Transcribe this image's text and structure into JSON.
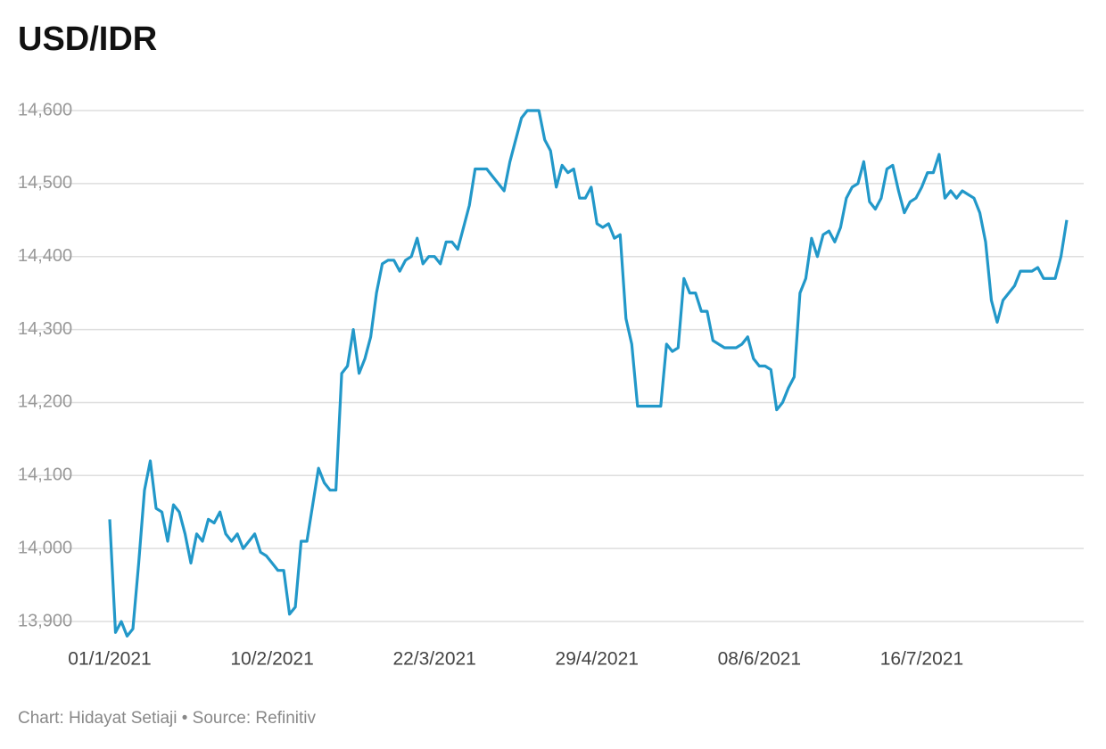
{
  "chart_data": {
    "type": "line",
    "title": "USD/IDR",
    "source": "Chart: Hidayat Setiaji • Source: Refinitiv",
    "categories": [
      "01/1/2021",
      null,
      null,
      null,
      null,
      null,
      null,
      null,
      null,
      null,
      null,
      null,
      null,
      null,
      null,
      null,
      null,
      null,
      null,
      null,
      null,
      null,
      null,
      null,
      null,
      null,
      null,
      null,
      "10/2/2021",
      null,
      null,
      null,
      null,
      null,
      null,
      null,
      null,
      null,
      null,
      null,
      null,
      null,
      null,
      null,
      null,
      null,
      null,
      null,
      null,
      null,
      null,
      null,
      null,
      null,
      null,
      null,
      "22/3/2021",
      null,
      null,
      null,
      null,
      null,
      null,
      null,
      null,
      null,
      null,
      null,
      null,
      null,
      null,
      null,
      null,
      null,
      null,
      null,
      null,
      null,
      null,
      null,
      null,
      null,
      null,
      null,
      "29/4/2021",
      null,
      null,
      null,
      null,
      null,
      null,
      null,
      null,
      null,
      null,
      null,
      null,
      null,
      null,
      null,
      null,
      null,
      null,
      null,
      null,
      null,
      null,
      null,
      null,
      null,
      null,
      null,
      "08/6/2021",
      null,
      null,
      null,
      null,
      null,
      null,
      null,
      null,
      null,
      null,
      null,
      null,
      null,
      null,
      null,
      null,
      null,
      null,
      null,
      null,
      null,
      null,
      null,
      null,
      null,
      null,
      null,
      "16/7/2021",
      null,
      null,
      null,
      null,
      null,
      null,
      null,
      null,
      null,
      null,
      null,
      null,
      null,
      null,
      null,
      null,
      null,
      null,
      null,
      null,
      null,
      null,
      null,
      null,
      null
    ],
    "series": [
      {
        "name": "USD/IDR",
        "color": "#2298c9",
        "values": [
          14040,
          13885,
          13900,
          13880,
          13890,
          13980,
          14080,
          14120,
          14055,
          14050,
          14010,
          14060,
          14050,
          14020,
          13980,
          14020,
          14010,
          14040,
          14035,
          14050,
          14020,
          14010,
          14020,
          14000,
          14010,
          14020,
          13995,
          13990,
          13980,
          13970,
          13970,
          13910,
          13920,
          14010,
          14010,
          14060,
          14110,
          14090,
          14080,
          14080,
          14240,
          14250,
          14300,
          14240,
          14260,
          14290,
          14350,
          14390,
          14395,
          14395,
          14380,
          14395,
          14400,
          14425,
          14390,
          14400,
          14400,
          14390,
          14420,
          14420,
          14410,
          14440,
          14470,
          14520,
          14520,
          14520,
          14510,
          14500,
          14490,
          14530,
          14560,
          14590,
          14600,
          14600,
          14600,
          14560,
          14545,
          14495,
          14525,
          14515,
          14520,
          14480,
          14480,
          14495,
          14445,
          14440,
          14445,
          14425,
          14430,
          14315,
          14280,
          14195,
          14195,
          14195,
          14195,
          14195,
          14280,
          14270,
          14275,
          14370,
          14350,
          14350,
          14325,
          14325,
          14285,
          14280,
          14275,
          14275,
          14275,
          14280,
          14290,
          14260,
          14250,
          14250,
          14245,
          14190,
          14200,
          14220,
          14235,
          14350,
          14370,
          14425,
          14400,
          14430,
          14435,
          14420,
          14440,
          14480,
          14495,
          14500,
          14530,
          14475,
          14465,
          14480,
          14520,
          14525,
          14490,
          14460,
          14475,
          14480,
          14495,
          14515,
          14515,
          14540,
          14480,
          14490,
          14480,
          14490,
          14485,
          14480,
          14460,
          14420,
          14340,
          14310,
          14340,
          14350,
          14360,
          14380,
          14380,
          14380,
          14385,
          14370,
          14370,
          14370,
          14400,
          14450
        ]
      }
    ],
    "ylim": [
      13875,
      14610
    ],
    "yticks": [
      {
        "value": 13900,
        "label": "13,900"
      },
      {
        "value": 14000,
        "label": "14,000"
      },
      {
        "value": 14100,
        "label": "14,100"
      },
      {
        "value": 14200,
        "label": "14,200"
      },
      {
        "value": 14300,
        "label": "14,300"
      },
      {
        "value": 14400,
        "label": "14,400"
      },
      {
        "value": 14500,
        "label": "14,500"
      },
      {
        "value": 14600,
        "label": "14,600"
      }
    ],
    "grid": true
  }
}
